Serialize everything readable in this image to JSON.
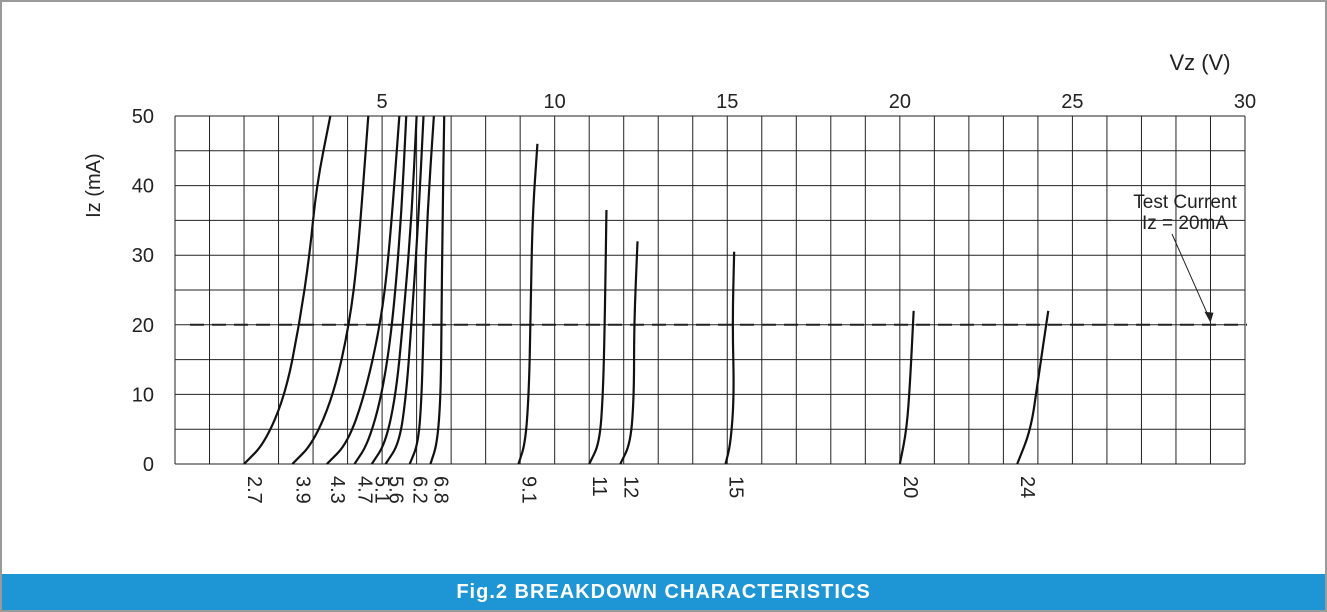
{
  "chart_data": {
    "type": "line",
    "xlabel": "Vz (V)",
    "ylabel": "Iz (mA)",
    "xlim": [
      0,
      30
    ],
    "ylim": [
      0,
      50
    ],
    "x_ticks": [
      "5",
      "10",
      "15",
      "20",
      "25",
      "30"
    ],
    "y_ticks": [
      "0",
      "10",
      "20",
      "30",
      "40",
      "50"
    ],
    "x_tick_values": [
      5,
      10,
      15,
      20,
      25,
      30
    ],
    "y_tick_values": [
      0,
      10,
      20,
      30,
      40,
      50
    ],
    "grid": true,
    "reference_line": {
      "y": 20
    },
    "annotation": {
      "lines": [
        "Test Current",
        "Iz = 20mA"
      ],
      "x": 29,
      "y": 20
    },
    "series": [
      {
        "name": "2.7",
        "x": [
          1.0,
          1.6,
          2.2,
          2.6,
          2.9,
          3.1,
          3.5
        ],
        "y": [
          0,
          3,
          10,
          20,
          30,
          40,
          50
        ]
      },
      {
        "name": "3.9",
        "x": [
          2.4,
          3.0,
          3.6,
          4.05,
          4.3,
          4.6
        ],
        "y": [
          0,
          3,
          10,
          20,
          30,
          50
        ]
      },
      {
        "name": "4.3",
        "x": [
          3.4,
          4.0,
          4.5,
          4.95,
          5.2,
          5.5
        ],
        "y": [
          0,
          3,
          10,
          20,
          30,
          50
        ]
      },
      {
        "name": "4.7",
        "x": [
          4.2,
          4.6,
          5.0,
          5.3,
          5.55,
          5.7
        ],
        "y": [
          0,
          3,
          10,
          20,
          35,
          50
        ]
      },
      {
        "name": "5.1",
        "x": [
          4.7,
          5.1,
          5.4,
          5.6,
          5.85,
          6.0
        ],
        "y": [
          0,
          3,
          10,
          20,
          35,
          50
        ]
      },
      {
        "name": "5.6",
        "x": [
          5.1,
          5.5,
          5.7,
          5.85,
          6.05,
          6.2
        ],
        "y": [
          0,
          3,
          10,
          20,
          35,
          50
        ]
      },
      {
        "name": "6.2",
        "x": [
          5.8,
          6.05,
          6.15,
          6.2,
          6.3,
          6.5
        ],
        "y": [
          0,
          3,
          10,
          20,
          35,
          50
        ]
      },
      {
        "name": "6.8",
        "x": [
          6.4,
          6.6,
          6.7,
          6.72,
          6.75,
          6.8
        ],
        "y": [
          0,
          3,
          10,
          20,
          35,
          50
        ]
      },
      {
        "name": "9.1",
        "x": [
          8.95,
          9.15,
          9.25,
          9.3,
          9.35,
          9.5
        ],
        "y": [
          0,
          3,
          10,
          20,
          35,
          46
        ]
      },
      {
        "name": "11",
        "x": [
          11.0,
          11.3,
          11.4,
          11.45,
          11.5
        ],
        "y": [
          0,
          3,
          10,
          20,
          36.5
        ]
      },
      {
        "name": "12",
        "x": [
          11.9,
          12.2,
          12.3,
          12.3,
          12.4
        ],
        "y": [
          0,
          3,
          10,
          20,
          32
        ]
      },
      {
        "name": "15",
        "x": [
          14.95,
          15.1,
          15.2,
          15.15,
          15.2
        ],
        "y": [
          0,
          3,
          10,
          20,
          30.5
        ]
      },
      {
        "name": "20",
        "x": [
          20.0,
          20.2,
          20.3,
          20.4
        ],
        "y": [
          0,
          5,
          12,
          22
        ]
      },
      {
        "name": "24",
        "x": [
          23.4,
          23.8,
          24.0,
          24.3
        ],
        "y": [
          0,
          5,
          12,
          22
        ]
      }
    ]
  },
  "caption": "Fig.2 BREAKDOWN CHARACTERISTICS"
}
